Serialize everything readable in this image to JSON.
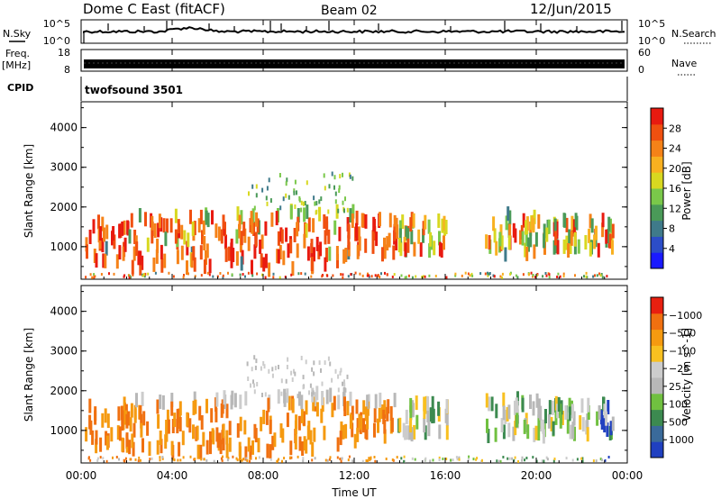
{
  "header": {
    "title": "Dome C East (fitACF)",
    "beam": "Beam 02",
    "date": "12/Jun/2015"
  },
  "status_panels": {
    "nsky_label": "N.Sky",
    "nsky_top": "10^5",
    "nsky_bottom": "10^0",
    "nsearch_label": "N.Search",
    "nsearch_top": "10^5",
    "nsearch_bottom": "10^0",
    "freq_label": "Freq.",
    "freq_unit": "[MHz]",
    "freq_top": "18",
    "freq_bottom": "8",
    "nave_label": "Nave",
    "nave_top": "60",
    "nave_bottom": "0",
    "cpid_label": "CPID",
    "cpid_value": "twofsound 3501"
  },
  "chart_data": [
    {
      "type": "heatmap",
      "quantity": "power",
      "ylabel": "Slant Range [km]",
      "ylim": [
        180,
        4650
      ],
      "yticks": [
        "1000",
        "2000",
        "3000",
        "4000"
      ],
      "colorbar": {
        "label": "Power [dB]",
        "ticks": [
          "4",
          "8",
          "12",
          "16",
          "20",
          "24",
          "28"
        ],
        "range": [
          0,
          32
        ],
        "colors": [
          "#1a1aff",
          "#2c4dc8",
          "#3f7a8a",
          "#4a9a58",
          "#7ac84a",
          "#d8d820",
          "#f8b020",
          "#f58218",
          "#f05010",
          "#e81a10"
        ]
      }
    },
    {
      "type": "heatmap",
      "quantity": "velocity",
      "ylabel": "Slant Range [km]",
      "ylim": [
        180,
        4650
      ],
      "yticks": [
        "1000",
        "2000",
        "3000",
        "4000"
      ],
      "colorbar": {
        "label": "Velocity [m s^-1]",
        "ticks": [
          "1000",
          "500",
          "100",
          "25",
          "−25",
          "−100",
          "−500",
          "−1000"
        ],
        "colors": [
          "#2040c0",
          "#3a6a9a",
          "#3c8a50",
          "#70c040",
          "#b8b8b8",
          "#cccccc",
          "#f8c020",
          "#f59a10",
          "#f07010",
          "#e82010"
        ]
      }
    }
  ],
  "x_axis": {
    "label": "Time UT",
    "ticks": [
      "00:00",
      "04:00",
      "08:00",
      "12:00",
      "16:00",
      "20:00",
      "00:00"
    ]
  }
}
